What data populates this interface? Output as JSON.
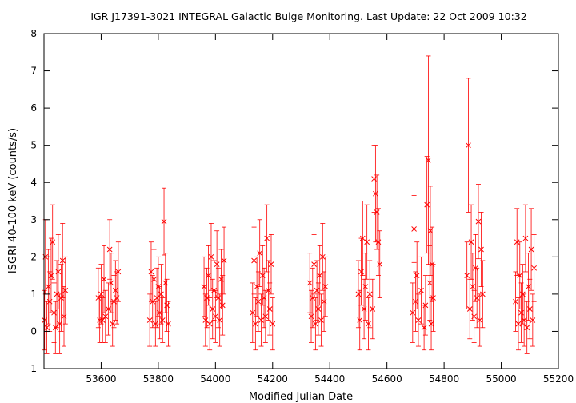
{
  "chart_data": {
    "type": "scatter",
    "title": "IGR J17391-3021    INTEGRAL Galactic Bulge Monitoring.  Last Update: 22 Oct 2009 10:32",
    "xlabel": "Modified Julian Date",
    "ylabel": "ISGRI 40-100 keV (counts/s)",
    "xlim": [
      53400,
      55200
    ],
    "ylim": [
      -1,
      8
    ],
    "xticks": [
      53600,
      53800,
      54000,
      54200,
      54400,
      54600,
      54800,
      55000,
      55200
    ],
    "yticks": [
      -1,
      0,
      1,
      2,
      3,
      4,
      5,
      6,
      7,
      8
    ],
    "grid": false,
    "legend": "none",
    "marker": "x",
    "color": "#ff0000",
    "series": [
      {
        "x": [
          53402,
          53405,
          53410,
          53415,
          53420,
          53425,
          53430,
          53435,
          53440,
          53445,
          53450,
          53455,
          53460,
          53465,
          53470,
          53475,
          53590,
          53595,
          53600,
          53605,
          53610,
          53615,
          53625,
          53630,
          53635,
          53640,
          53645,
          53650,
          53655,
          53660,
          53770,
          53775,
          53780,
          53785,
          53790,
          53795,
          53800,
          53805,
          53810,
          53815,
          53820,
          53825,
          53830,
          53835,
          53960,
          53965,
          53970,
          53975,
          53980,
          53985,
          53990,
          53995,
          54000,
          54005,
          54010,
          54015,
          54020,
          54025,
          54030,
          54130,
          54135,
          54140,
          54145,
          54150,
          54155,
          54160,
          54165,
          54170,
          54175,
          54180,
          54185,
          54190,
          54195,
          54200,
          54330,
          54335,
          54340,
          54345,
          54350,
          54355,
          54360,
          54365,
          54370,
          54375,
          54380,
          54385,
          54500,
          54505,
          54510,
          54515,
          54520,
          54525,
          54530,
          54535,
          54540,
          54550,
          54555,
          54560,
          54565,
          54570,
          54575,
          54690,
          54695,
          54700,
          54705,
          54710,
          54720,
          54730,
          54735,
          54740,
          54745,
          54750,
          54752,
          54755,
          54758,
          54762,
          54880,
          54885,
          54890,
          54895,
          54900,
          54905,
          54910,
          54915,
          54920,
          54925,
          54930,
          54935,
          55050,
          55055,
          55060,
          55065,
          55070,
          55075,
          55080,
          55085,
          55090,
          55095,
          55100,
          55105,
          55110,
          55115
        ],
        "y": [
          0.3,
          2.0,
          0.1,
          1.2,
          0.8,
          1.5,
          2.4,
          0.5,
          0.1,
          1.0,
          1.6,
          0.2,
          0.9,
          1.9,
          0.4,
          1.1,
          0.9,
          0.3,
          1.0,
          0.3,
          1.4,
          0.4,
          0.6,
          2.2,
          1.3,
          0.2,
          0.8,
          1.1,
          0.9,
          1.6,
          0.3,
          1.6,
          0.8,
          1.4,
          0.2,
          0.9,
          1.2,
          0.5,
          1.0,
          0.3,
          2.95,
          1.3,
          0.7,
          0.2,
          1.2,
          0.3,
          0.9,
          1.5,
          0.2,
          2.0,
          0.6,
          1.1,
          0.4,
          1.8,
          0.9,
          0.3,
          1.4,
          0.7,
          1.9,
          0.5,
          1.9,
          0.2,
          1.2,
          0.8,
          2.1,
          0.3,
          1.5,
          0.9,
          0.4,
          2.5,
          1.1,
          0.6,
          1.8,
          0.2,
          1.3,
          0.4,
          0.9,
          1.8,
          0.2,
          1.1,
          0.6,
          1.5,
          0.3,
          2.0,
          0.8,
          1.2,
          1.0,
          0.3,
          1.6,
          2.5,
          0.6,
          1.2,
          2.4,
          0.2,
          1.0,
          0.6,
          4.1,
          3.7,
          3.2,
          2.4,
          1.8,
          0.5,
          2.75,
          0.8,
          1.5,
          0.3,
          1.1,
          0.1,
          0.7,
          3.4,
          4.6,
          1.3,
          2.7,
          0.2,
          1.8,
          0.9,
          1.5,
          5.0,
          0.6,
          2.4,
          1.2,
          0.4,
          1.7,
          0.9,
          2.95,
          0.3,
          2.2,
          1.0,
          0.8,
          2.4,
          0.2,
          1.5,
          0.5,
          1.0,
          0.3,
          2.5,
          0.1,
          1.2,
          0.6,
          2.2,
          0.3,
          1.7
        ],
        "yerr": [
          0.8,
          1.0,
          0.7,
          1.0,
          0.8,
          1.0,
          1.0,
          0.8,
          0.7,
          0.9,
          1.0,
          0.8,
          0.9,
          1.0,
          0.8,
          0.9,
          0.8,
          0.6,
          0.8,
          0.6,
          0.9,
          0.7,
          0.7,
          0.8,
          0.8,
          0.6,
          0.7,
          0.8,
          0.7,
          0.8,
          0.7,
          0.8,
          0.7,
          0.8,
          0.6,
          0.8,
          0.8,
          0.7,
          0.8,
          0.6,
          0.9,
          0.8,
          0.7,
          0.6,
          0.8,
          0.7,
          0.8,
          0.8,
          0.7,
          0.9,
          0.8,
          0.8,
          0.7,
          0.9,
          0.8,
          0.7,
          0.8,
          0.8,
          0.9,
          0.8,
          0.9,
          0.7,
          0.8,
          0.8,
          0.9,
          0.7,
          0.8,
          0.8,
          0.7,
          0.9,
          0.8,
          0.7,
          0.8,
          0.7,
          0.8,
          0.7,
          0.8,
          0.8,
          0.7,
          0.8,
          0.7,
          0.8,
          0.7,
          0.9,
          0.8,
          0.8,
          0.9,
          0.8,
          0.9,
          1.0,
          0.8,
          0.9,
          1.0,
          0.7,
          0.9,
          0.8,
          0.9,
          1.3,
          1.0,
          0.9,
          0.9,
          0.8,
          0.9,
          0.8,
          0.9,
          0.7,
          0.9,
          0.6,
          0.8,
          1.3,
          2.8,
          1.0,
          1.2,
          0.7,
          1.0,
          0.9,
          0.9,
          1.8,
          0.8,
          1.0,
          0.9,
          0.7,
          0.9,
          0.8,
          1.0,
          0.7,
          1.0,
          0.9,
          0.8,
          0.9,
          0.7,
          0.9,
          0.8,
          0.8,
          0.7,
          0.9,
          0.7,
          0.9,
          0.8,
          1.1,
          0.7,
          0.9
        ]
      }
    ]
  }
}
